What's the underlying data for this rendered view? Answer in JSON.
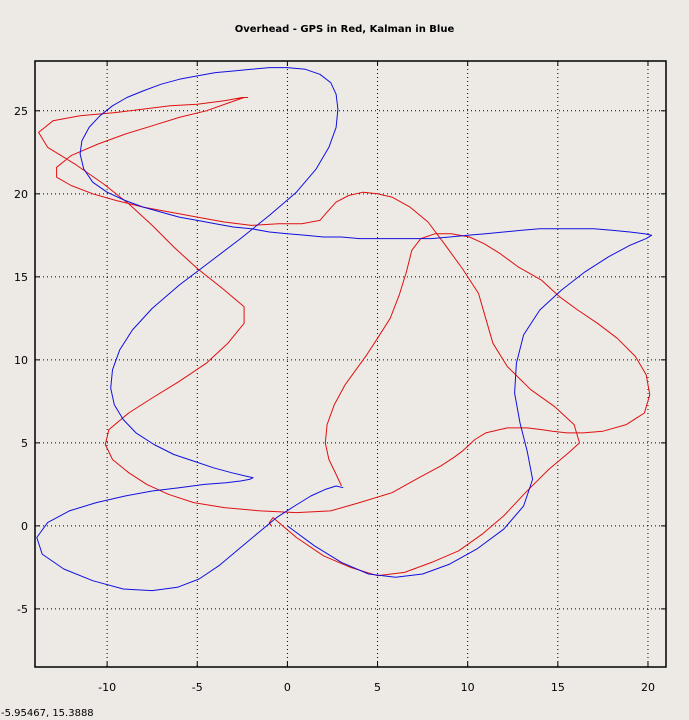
{
  "title": "Overhead - GPS in Red, Kalman in Blue",
  "status": {
    "cursor_readout": "-5.95467,  15.3888"
  },
  "colors": {
    "background": "#edeae6",
    "gps": "#e01010",
    "kalman": "#1010e0",
    "grid": "#000000"
  },
  "chart_data": {
    "type": "line",
    "title": "Overhead - GPS in Red, Kalman in Blue",
    "xlabel": "",
    "ylabel": "",
    "xlim": [
      -14,
      21
    ],
    "ylim": [
      -8.5,
      28
    ],
    "grid": true,
    "grid_style": "dotted",
    "xticks": [
      -10,
      -5,
      0,
      5,
      10,
      15,
      20
    ],
    "yticks": [
      -5,
      0,
      5,
      10,
      15,
      20,
      25
    ],
    "series": [
      {
        "name": "GPS",
        "color": "#e01010",
        "x": [
          -0.9,
          -1,
          -0.8,
          0.5,
          2,
          3.5,
          5,
          6.5,
          8,
          9.5,
          10.8,
          12,
          13.2,
          14.5,
          15.6,
          16.2,
          15.9,
          14.8,
          13.5,
          12.2,
          11.4,
          11,
          10.6,
          9.7,
          8.7,
          7.8,
          6.8,
          5.8,
          5,
          4.2,
          3.4,
          2.7,
          2.2,
          1.8,
          0.8,
          -0.5,
          -2,
          -3.5,
          -5,
          -6.5,
          -8,
          -9.5,
          -10.8,
          -12,
          -12.8,
          -12.8,
          -12,
          -10.5,
          -9,
          -7.5,
          -6,
          -4.5,
          -3.2,
          -2.4,
          -2.2,
          -2.5,
          -3.5,
          -5,
          -6.5,
          -8,
          -9.5,
          -11.5,
          -13,
          -13.8,
          -13.3,
          -11.8,
          -10.2,
          -8.8,
          -7.5,
          -6.3,
          -5,
          -3.6,
          -2.4,
          -2.4,
          -3.3,
          -4.5,
          -6,
          -7.5,
          -8.8,
          -9.9,
          -10.1,
          -9.7,
          -8.8,
          -7.8,
          -6.6,
          -5.2,
          -3.5,
          -1.5,
          0.5,
          2.4,
          4,
          5.8,
          7.3,
          8.5,
          9.2,
          9.7,
          10,
          10.4,
          11,
          12.2,
          13.3,
          14.1,
          14.7,
          15.5,
          16.4,
          17.5,
          18.8,
          19.8,
          20.1,
          19.9,
          19.3,
          18.3,
          17.2,
          16.1,
          15.1,
          14.1,
          12.8,
          11.8,
          10.9,
          10.1,
          9.1,
          8.2,
          7.4,
          6.9,
          6.6,
          6.2,
          5.7,
          5,
          4.4,
          3.8,
          3.2,
          2.6,
          2.2,
          2.1,
          2.3,
          2.7,
          3
        ],
        "y": [
          0,
          0.2,
          0.5,
          -0.7,
          -1.8,
          -2.5,
          -3,
          -2.8,
          -2.2,
          -1.5,
          -0.5,
          0.6,
          2,
          3.4,
          4.4,
          5,
          6.1,
          7.2,
          8.2,
          9.6,
          11,
          12.5,
          14,
          15.5,
          17,
          18.3,
          19.2,
          19.8,
          20,
          20.1,
          19.9,
          19.5,
          18.9,
          18.4,
          18.2,
          18.2,
          18.1,
          18.3,
          18.6,
          18.9,
          19.2,
          19.6,
          20,
          20.5,
          21,
          21.6,
          22.3,
          23,
          23.6,
          24.1,
          24.6,
          25,
          25.5,
          25.8,
          25.8,
          25.8,
          25.6,
          25.4,
          25.3,
          25.1,
          24.9,
          24.7,
          24.4,
          23.7,
          22.8,
          21.8,
          20.6,
          19.4,
          18.1,
          16.8,
          15.5,
          14.3,
          13.2,
          12.2,
          11,
          9.8,
          8.7,
          7.7,
          6.8,
          5.8,
          4.9,
          4,
          3.2,
          2.5,
          1.9,
          1.4,
          1.1,
          0.9,
          0.8,
          0.9,
          1.4,
          2,
          2.9,
          3.6,
          4.1,
          4.5,
          4.8,
          5.2,
          5.6,
          5.9,
          5.9,
          5.8,
          5.7,
          5.6,
          5.6,
          5.7,
          6.1,
          6.8,
          7.9,
          9.1,
          10.2,
          11.3,
          12.2,
          13,
          13.8,
          14.8,
          15.6,
          16.4,
          17,
          17.4,
          17.6,
          17.6,
          17.3,
          16.6,
          15.3,
          13.9,
          12.5,
          11.3,
          10.3,
          9.4,
          8.5,
          7.3,
          6.1,
          5,
          4,
          3.1,
          2.4
        ]
      },
      {
        "name": "Kalman",
        "color": "#1010e0",
        "x": [
          0,
          1.5,
          3,
          4.5,
          6,
          7.5,
          9,
          10.5,
          12,
          13.1,
          13.6,
          13.3,
          12.9,
          12.6,
          12.7,
          13.1,
          14,
          15.2,
          16.5,
          17.8,
          19,
          19.9,
          20.2,
          19.8,
          19,
          18,
          17,
          16,
          15,
          14,
          13,
          12,
          11,
          10,
          9,
          8,
          7,
          6,
          5,
          4,
          3,
          2,
          1,
          0,
          -1,
          -2,
          -3,
          -4,
          -5,
          -6,
          -7,
          -8,
          -9,
          -10,
          -10.8,
          -11.3,
          -11.5,
          -11.4,
          -11,
          -10.4,
          -9.7,
          -8.9,
          -8,
          -7,
          -6,
          -5,
          -4,
          -3,
          -2,
          -1,
          0,
          1,
          1.8,
          2.4,
          2.7,
          2.8,
          2.7,
          2.3,
          1.6,
          0.5,
          -1,
          -2.6,
          -4.3,
          -6,
          -7.5,
          -8.6,
          -9.3,
          -9.7,
          -9.8,
          -9.6,
          -9.1,
          -8.4,
          -7.4,
          -6.3,
          -5.2,
          -4.1,
          -3.1,
          -2.3,
          -1.9,
          -2.1,
          -2.6,
          -3.4,
          -4.6,
          -6,
          -7.5,
          -9,
          -10.6,
          -12.1,
          -13.3,
          -13.9,
          -13.6,
          -12.4,
          -10.8,
          -9.1,
          -7.5,
          -6.1,
          -4.9,
          -3.8,
          -2.7,
          -1.6,
          -0.6,
          0.4,
          1.3,
          2.1,
          2.7,
          3.1
        ],
        "y": [
          0,
          -1.2,
          -2.2,
          -2.9,
          -3.1,
          -2.9,
          -2.3,
          -1.4,
          -0.2,
          1.2,
          2.8,
          4.5,
          6.2,
          8,
          9.8,
          11.5,
          13,
          14.2,
          15.3,
          16.2,
          16.9,
          17.3,
          17.5,
          17.6,
          17.7,
          17.8,
          17.9,
          17.9,
          17.9,
          17.9,
          17.8,
          17.7,
          17.6,
          17.5,
          17.4,
          17.3,
          17.3,
          17.3,
          17.3,
          17.3,
          17.4,
          17.4,
          17.5,
          17.6,
          17.7,
          17.9,
          18,
          18.2,
          18.4,
          18.6,
          18.9,
          19.2,
          19.6,
          20.1,
          20.7,
          21.5,
          22.4,
          23.2,
          24,
          24.7,
          25.3,
          25.8,
          26.2,
          26.6,
          26.9,
          27.1,
          27.3,
          27.4,
          27.5,
          27.6,
          27.6,
          27.5,
          27.2,
          26.7,
          26,
          25.1,
          24,
          22.8,
          21.5,
          20.1,
          18.7,
          17.3,
          15.9,
          14.5,
          13.1,
          11.8,
          10.6,
          9.4,
          8.3,
          7.3,
          6.4,
          5.6,
          4.9,
          4.3,
          3.9,
          3.5,
          3.2,
          3,
          2.9,
          2.8,
          2.7,
          2.6,
          2.5,
          2.3,
          2.1,
          1.8,
          1.4,
          0.9,
          0.2,
          -0.7,
          -1.7,
          -2.6,
          -3.3,
          -3.8,
          -3.9,
          -3.7,
          -3.2,
          -2.4,
          -1.4,
          -0.4,
          0.5,
          1.2,
          1.8,
          2.2,
          2.4,
          2.3
        ]
      }
    ]
  }
}
